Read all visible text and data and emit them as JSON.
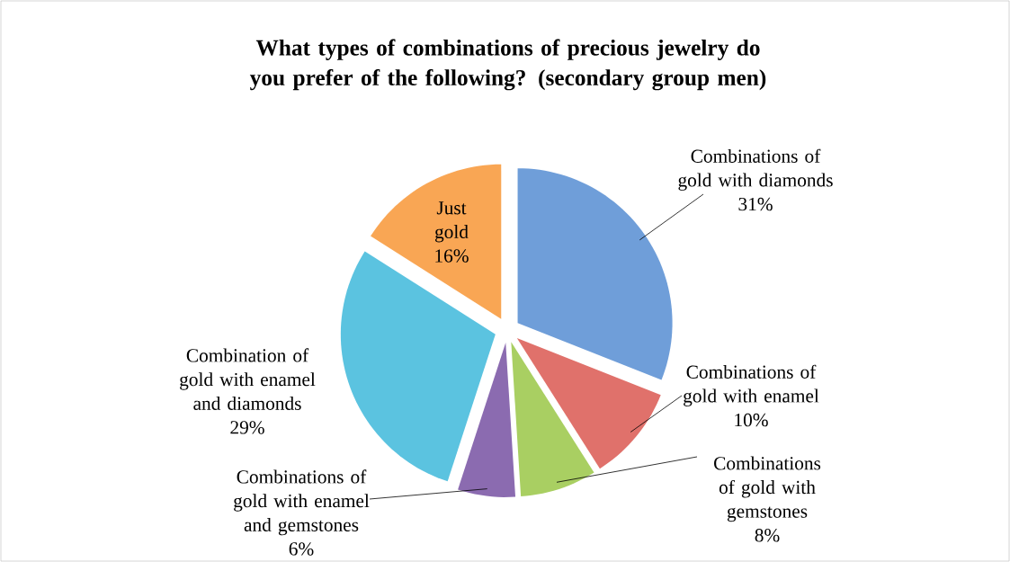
{
  "chart_data": {
    "type": "pie",
    "title": "What types of combinations of precious jewelry do you prefer of the following? (secondary group men)",
    "categories": [
      "Combinations of gold with diamonds",
      "Combinations of gold with enamel",
      "Combinations of gold with gemstones",
      "Combinations of gold with enamel and gemstones",
      "Combination of gold with enamel and diamonds",
      "Just gold"
    ],
    "values": [
      31,
      10,
      8,
      6,
      29,
      16
    ],
    "value_labels": [
      "31%",
      "10%",
      "8%",
      "6%",
      "29%",
      "16%"
    ],
    "colors": [
      "#6f9ed9",
      "#e0716b",
      "#a9cf62",
      "#8b6bb0",
      "#5bc3e0",
      "#f9a654"
    ],
    "legend": false
  }
}
